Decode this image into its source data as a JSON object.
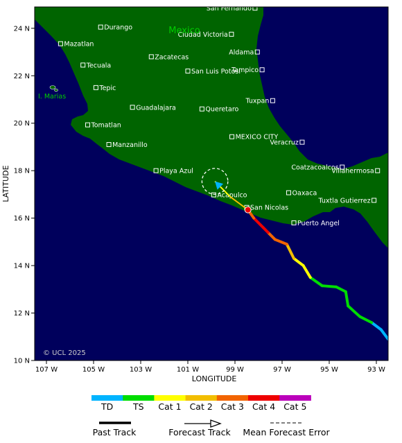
{
  "map": {
    "country_label": "Mexico",
    "island_label": "I. Marias",
    "copyright": "© UCL 2025",
    "xlabel": "LONGITUDE",
    "ylabel": "LATITUDE",
    "lon_range": [
      -107.5,
      -92.5
    ],
    "lat_range": [
      10,
      24.9
    ],
    "lon_ticks": [
      {
        "value": -107,
        "label": "107 W"
      },
      {
        "value": -105,
        "label": "105 W"
      },
      {
        "value": -103,
        "label": "103 W"
      },
      {
        "value": -101,
        "label": "101 W"
      },
      {
        "value": -99,
        "label": "99 W"
      },
      {
        "value": -97,
        "label": "97 W"
      },
      {
        "value": -95,
        "label": "95 W"
      },
      {
        "value": -93,
        "label": "93 W"
      }
    ],
    "lat_ticks": [
      {
        "value": 10,
        "label": "10 N"
      },
      {
        "value": 12,
        "label": "12 N"
      },
      {
        "value": 14,
        "label": "14 N"
      },
      {
        "value": 16,
        "label": "16 N"
      },
      {
        "value": 18,
        "label": "18 N"
      },
      {
        "value": 20,
        "label": "20 N"
      },
      {
        "value": 22,
        "label": "22 N"
      },
      {
        "value": 24,
        "label": "24 N"
      }
    ],
    "cities": [
      {
        "name": "San Fernando",
        "lon": -98.15,
        "lat": 24.85,
        "anchor": "end"
      },
      {
        "name": "Durango",
        "lon": -104.7,
        "lat": 24.05,
        "anchor": "start"
      },
      {
        "name": "Ciudad Victoria",
        "lon": -99.15,
        "lat": 23.75,
        "anchor": "end"
      },
      {
        "name": "Mazatlan",
        "lon": -106.4,
        "lat": 23.35,
        "anchor": "start"
      },
      {
        "name": "Aldama",
        "lon": -98.05,
        "lat": 23.0,
        "anchor": "end"
      },
      {
        "name": "Zacatecas",
        "lon": -102.55,
        "lat": 22.8,
        "anchor": "start"
      },
      {
        "name": "Tecuala",
        "lon": -105.45,
        "lat": 22.45,
        "anchor": "start"
      },
      {
        "name": "Tampico",
        "lon": -97.85,
        "lat": 22.25,
        "anchor": "end"
      },
      {
        "name": "San Luis Potosi",
        "lon": -101.0,
        "lat": 22.2,
        "anchor": "start"
      },
      {
        "name": "Tepic",
        "lon": -104.9,
        "lat": 21.5,
        "anchor": "start"
      },
      {
        "name": "Tuxpan",
        "lon": -97.4,
        "lat": 20.95,
        "anchor": "end"
      },
      {
        "name": "Guadalajara",
        "lon": -103.35,
        "lat": 20.67,
        "anchor": "start"
      },
      {
        "name": "Queretaro",
        "lon": -100.4,
        "lat": 20.6,
        "anchor": "start"
      },
      {
        "name": "Tomatlan",
        "lon": -105.25,
        "lat": 19.93,
        "anchor": "start"
      },
      {
        "name": "MEXICO CITY",
        "lon": -99.13,
        "lat": 19.43,
        "anchor": "start"
      },
      {
        "name": "Manzanillo",
        "lon": -104.35,
        "lat": 19.1,
        "anchor": "start"
      },
      {
        "name": "Veracruz",
        "lon": -96.15,
        "lat": 19.2,
        "anchor": "end"
      },
      {
        "name": "Coatzacoalcos",
        "lon": -94.45,
        "lat": 18.15,
        "anchor": "end"
      },
      {
        "name": "Playa Azul",
        "lon": -102.35,
        "lat": 18.0,
        "anchor": "start"
      },
      {
        "name": "Villahermosa",
        "lon": -92.95,
        "lat": 18.0,
        "anchor": "end"
      },
      {
        "name": "Oaxaca",
        "lon": -96.72,
        "lat": 17.07,
        "anchor": "start"
      },
      {
        "name": "Acapulco",
        "lon": -99.9,
        "lat": 16.98,
        "anchor": "start"
      },
      {
        "name": "Tuxtla Gutierrez",
        "lon": -93.1,
        "lat": 16.75,
        "anchor": "end"
      },
      {
        "name": "San Nicolas",
        "lon": -98.5,
        "lat": 16.45,
        "anchor": "start"
      },
      {
        "name": "Puerto Angel",
        "lon": -96.5,
        "lat": 15.8,
        "anchor": "start"
      }
    ],
    "colors": {
      "ocean": "#00005c",
      "land": "#006400",
      "label": "#ffffff",
      "country_label": "#00cc00"
    }
  },
  "storm": {
    "past_track": [
      {
        "lon": -92.5,
        "lat": 10.9,
        "cat": "TD"
      },
      {
        "lon": -92.8,
        "lat": 11.3,
        "cat": "TD"
      },
      {
        "lon": -93.2,
        "lat": 11.6,
        "cat": "TD"
      },
      {
        "lon": -93.7,
        "lat": 11.85,
        "cat": "TS"
      },
      {
        "lon": -94.2,
        "lat": 12.3,
        "cat": "TS"
      },
      {
        "lon": -94.3,
        "lat": 12.9,
        "cat": "TS"
      },
      {
        "lon": -94.7,
        "lat": 13.1,
        "cat": "TS"
      },
      {
        "lon": -95.3,
        "lat": 13.15,
        "cat": "TS"
      },
      {
        "lon": -95.8,
        "lat": 13.5,
        "cat": "TS"
      },
      {
        "lon": -96.1,
        "lat": 14.0,
        "cat": "Cat 1"
      },
      {
        "lon": -96.5,
        "lat": 14.3,
        "cat": "Cat 1"
      },
      {
        "lon": -96.8,
        "lat": 14.9,
        "cat": "Cat 2"
      },
      {
        "lon": -97.3,
        "lat": 15.1,
        "cat": "Cat 3"
      },
      {
        "lon": -97.6,
        "lat": 15.4,
        "cat": "Cat 3"
      },
      {
        "lon": -97.8,
        "lat": 15.6,
        "cat": "Cat 4"
      },
      {
        "lon": -98.2,
        "lat": 16.0,
        "cat": "Cat 4"
      },
      {
        "lon": -98.45,
        "lat": 16.35,
        "cat": "Cat 3"
      }
    ],
    "forecast_track": [
      {
        "lon": -98.45,
        "lat": 16.35,
        "cat": "Cat 2"
      },
      {
        "lon": -99.2,
        "lat": 16.9,
        "cat": "Cat 1"
      },
      {
        "lon": -99.85,
        "lat": 17.55,
        "cat": "TD"
      }
    ],
    "forecast_error_radius_deg": 0.55
  },
  "legend": {
    "categories": [
      {
        "label": "TD",
        "color": "#00b4ff"
      },
      {
        "label": "TS",
        "color": "#00dd00"
      },
      {
        "label": "Cat 1",
        "color": "#ffff00"
      },
      {
        "label": "Cat 2",
        "color": "#f2be00"
      },
      {
        "label": "Cat 3",
        "color": "#f26400"
      },
      {
        "label": "Cat 4",
        "color": "#ee0000"
      },
      {
        "label": "Cat 5",
        "color": "#bb00bb"
      }
    ],
    "past_track_label": "Past Track",
    "forecast_track_label": "Forecast Track",
    "mean_error_label": "Mean Forecast Error"
  }
}
